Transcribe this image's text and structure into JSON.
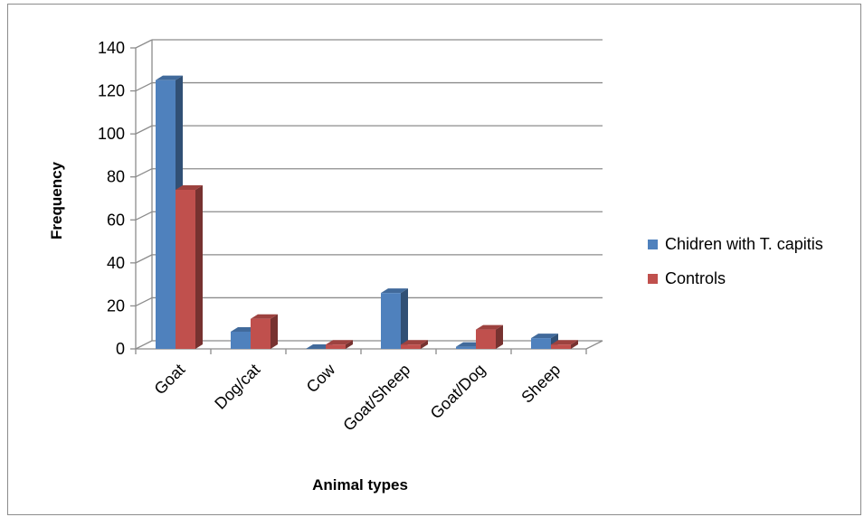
{
  "chart_data": {
    "type": "bar",
    "xlabel": "Animal types",
    "ylabel": "Frequency",
    "categories": [
      "Goat",
      "Dog/cat",
      "Cow",
      "Goat/Sheep",
      "Goat/Dog",
      "Sheep"
    ],
    "series": [
      {
        "name": "Chidren with T. capitis",
        "color": "#4f81bd",
        "values": [
          125,
          8,
          0,
          26,
          1,
          5
        ]
      },
      {
        "name": "Controls",
        "color": "#c0504d",
        "values": [
          74,
          14,
          2,
          2,
          9,
          2
        ]
      }
    ],
    "yticks": [
      0,
      20,
      40,
      60,
      80,
      100,
      120,
      140
    ],
    "ylim": [
      0,
      140
    ],
    "grid": true,
    "legend_position": "right",
    "style": "3d-clustered-column"
  }
}
